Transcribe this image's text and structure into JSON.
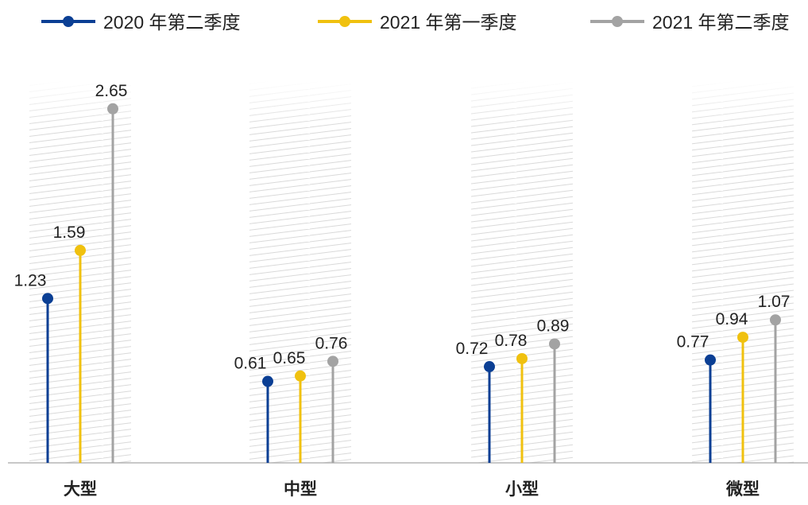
{
  "chart_data": {
    "type": "lollipop",
    "categories": [
      "大型",
      "中型",
      "小型",
      "微型"
    ],
    "series": [
      {
        "name": "2020 年第二季度",
        "values": [
          1.23,
          0.61,
          0.72,
          0.77
        ],
        "color": "#0b3f94"
      },
      {
        "name": "2021 年第一季度",
        "values": [
          1.59,
          0.65,
          0.78,
          0.94
        ],
        "color": "#f0c10f"
      },
      {
        "name": "2021 年第二季度",
        "values": [
          2.65,
          0.76,
          0.89,
          1.07
        ],
        "color": "#a3a3a3"
      }
    ],
    "value_labels": [
      [
        "1.23",
        "0.61",
        "0.72",
        "0.77"
      ],
      [
        "1.59",
        "0.65",
        "0.78",
        "0.94"
      ],
      [
        "2.65",
        "0.76",
        "0.89",
        "1.07"
      ]
    ],
    "ylim": [
      0,
      3.0
    ],
    "legend_position": "top",
    "grid": false,
    "background_pattern": "diagonal-hatch",
    "colors": {
      "axis": "#a8a8a8",
      "hatch": "#d9d9d9",
      "text": "#222222"
    }
  }
}
